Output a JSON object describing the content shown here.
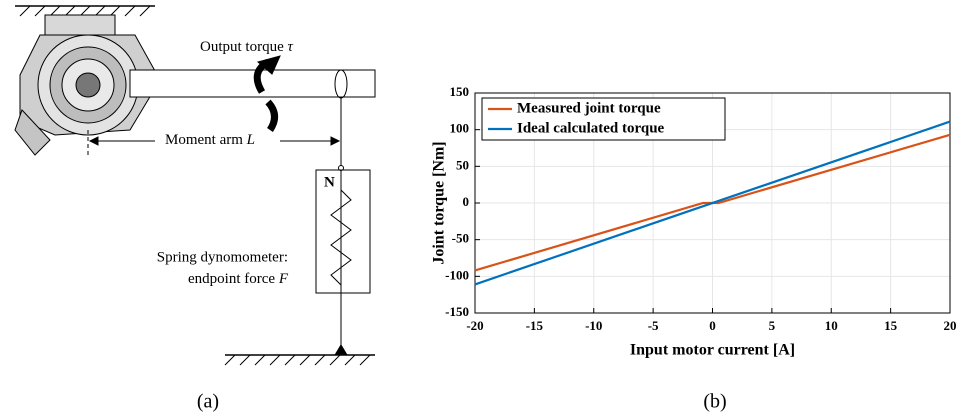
{
  "panel_a": {
    "output_torque": "Output torque",
    "output_torque_symbol": "τ",
    "moment_arm": "Moment arm",
    "moment_arm_symbol": "L",
    "gauge_mark": "N",
    "spring_line1": "Spring dynomometer:",
    "spring_line2": "endpoint force",
    "spring_symbol": "F"
  },
  "captions": [
    "(a)",
    "(b)"
  ],
  "chart_data": {
    "type": "line",
    "xlabel": "Input motor current [A]",
    "ylabel": "Joint torque [Nm]",
    "xlim": [
      -20,
      20
    ],
    "xticks": [
      -20,
      -15,
      -10,
      -5,
      0,
      5,
      10,
      15,
      20
    ],
    "ylim": [
      -150,
      150
    ],
    "yticks": [
      -150,
      -100,
      -50,
      0,
      50,
      100,
      150
    ],
    "grid": true,
    "legend": "upper-left",
    "series": [
      {
        "name": "Measured joint torque",
        "color": "#d95319",
        "x": [
          -20,
          -0.8,
          0.5,
          20
        ],
        "values": [
          -92,
          0,
          0,
          93
        ]
      },
      {
        "name": "Ideal calculated torque",
        "color": "#0072bd",
        "x": [
          -20,
          20
        ],
        "values": [
          -111,
          111
        ]
      }
    ]
  }
}
